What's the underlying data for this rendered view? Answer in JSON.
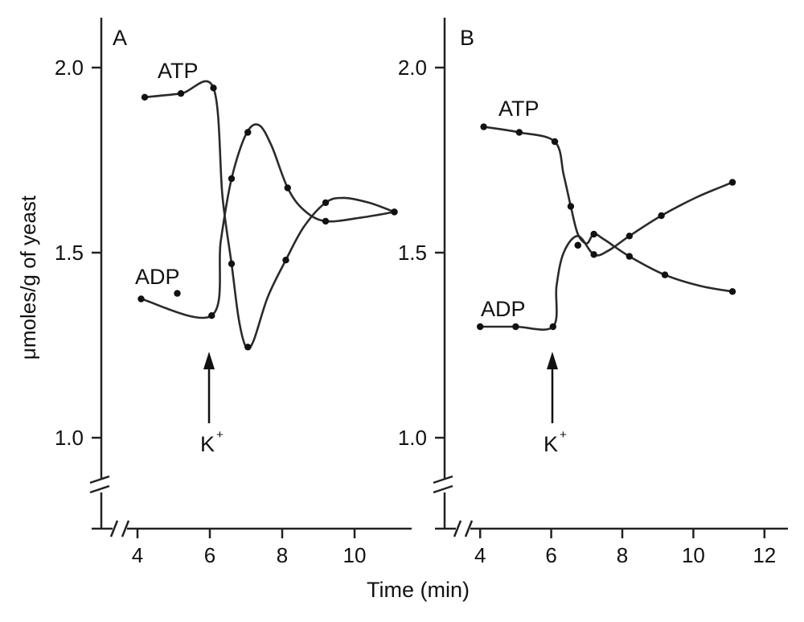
{
  "chart_data": [
    {
      "type": "line",
      "panel_label": "A",
      "ylabel": "μmoles/g of yeast",
      "xlim": [
        3,
        11.5
      ],
      "ylim": [
        0.75,
        2.15
      ],
      "yticks": [
        1.0,
        1.5,
        2.0
      ],
      "ytick_labels": [
        "1.0",
        "1.5",
        "2.0"
      ],
      "xticks": [
        4,
        6,
        8,
        10
      ],
      "xtick_labels": [
        "4",
        "6",
        "8",
        "10"
      ],
      "annotation": {
        "text": "K",
        "superscript": "+",
        "x": 6.05
      },
      "series": [
        {
          "name": "ATP",
          "points": [
            [
              4.2,
              1.92
            ],
            [
              5.2,
              1.93
            ],
            [
              6.1,
              1.945
            ],
            [
              6.6,
              1.47
            ],
            [
              7.05,
              1.245
            ],
            [
              8.1,
              1.48
            ],
            [
              9.2,
              1.635
            ],
            [
              11.1,
              1.61
            ]
          ],
          "curve": [
            [
              4.2,
              1.92
            ],
            [
              5.2,
              1.93
            ],
            [
              6.1,
              1.945
            ],
            [
              6.35,
              1.65
            ],
            [
              6.6,
              1.47
            ],
            [
              6.8,
              1.32
            ],
            [
              7.0,
              1.245
            ],
            [
              7.2,
              1.26
            ],
            [
              7.6,
              1.38
            ],
            [
              8.1,
              1.48
            ],
            [
              8.6,
              1.57
            ],
            [
              9.2,
              1.635
            ],
            [
              9.7,
              1.648
            ],
            [
              10.4,
              1.635
            ],
            [
              11.1,
              1.61
            ]
          ]
        },
        {
          "name": "ADP",
          "points": [
            [
              4.1,
              1.375
            ],
            [
              6.05,
              1.33
            ],
            [
              6.6,
              1.7
            ],
            [
              7.05,
              1.825
            ],
            [
              8.15,
              1.675
            ],
            [
              9.2,
              1.585
            ],
            [
              11.1,
              1.61
            ]
          ],
          "curve": [
            [
              4.1,
              1.375
            ],
            [
              6.05,
              1.33
            ],
            [
              6.3,
              1.53
            ],
            [
              6.6,
              1.7
            ],
            [
              7.0,
              1.82
            ],
            [
              7.35,
              1.845
            ],
            [
              7.7,
              1.79
            ],
            [
              8.15,
              1.675
            ],
            [
              8.6,
              1.615
            ],
            [
              9.2,
              1.585
            ],
            [
              10.2,
              1.595
            ],
            [
              11.1,
              1.61
            ]
          ],
          "extra_points": [
            [
              5.1,
              1.39
            ]
          ]
        }
      ]
    },
    {
      "type": "line",
      "panel_label": "B",
      "xlim": [
        3,
        12.5
      ],
      "ylim": [
        0.75,
        2.15
      ],
      "yticks": [
        1.0,
        1.5,
        2.0
      ],
      "ytick_labels": [
        "1.0",
        "1.5",
        "2.0"
      ],
      "xticks": [
        4,
        6,
        8,
        10,
        12
      ],
      "xtick_labels": [
        "4",
        "6",
        "8",
        "10",
        "12"
      ],
      "annotation": {
        "text": "K",
        "superscript": "+",
        "x": 6.05
      },
      "series": [
        {
          "name": "ATP",
          "points": [
            [
              4.1,
              1.84
            ],
            [
              5.1,
              1.825
            ],
            [
              6.1,
              1.8
            ],
            [
              6.55,
              1.625
            ],
            [
              6.75,
              1.52
            ],
            [
              7.2,
              1.55
            ],
            [
              8.2,
              1.49
            ],
            [
              9.2,
              1.44
            ],
            [
              11.1,
              1.395
            ]
          ],
          "curve": [
            [
              4.1,
              1.84
            ],
            [
              5.1,
              1.825
            ],
            [
              6.1,
              1.8
            ],
            [
              6.35,
              1.71
            ],
            [
              6.55,
              1.625
            ],
            [
              6.75,
              1.55
            ],
            [
              7.0,
              1.525
            ],
            [
              7.2,
              1.55
            ],
            [
              7.5,
              1.535
            ],
            [
              8.2,
              1.49
            ],
            [
              9.2,
              1.44
            ],
            [
              10.2,
              1.41
            ],
            [
              11.1,
              1.395
            ]
          ]
        },
        {
          "name": "ADP",
          "points": [
            [
              4.0,
              1.3
            ],
            [
              5.0,
              1.3
            ],
            [
              6.05,
              1.3
            ],
            [
              6.75,
              1.52
            ],
            [
              7.2,
              1.495
            ],
            [
              8.2,
              1.545
            ],
            [
              9.1,
              1.6
            ],
            [
              11.1,
              1.69
            ]
          ],
          "curve": [
            [
              4.0,
              1.3
            ],
            [
              5.0,
              1.3
            ],
            [
              6.05,
              1.3
            ],
            [
              6.15,
              1.41
            ],
            [
              6.35,
              1.5
            ],
            [
              6.75,
              1.545
            ],
            [
              7.2,
              1.495
            ],
            [
              7.6,
              1.505
            ],
            [
              8.2,
              1.545
            ],
            [
              9.1,
              1.6
            ],
            [
              10.1,
              1.65
            ],
            [
              11.1,
              1.69
            ]
          ]
        }
      ]
    }
  ],
  "xlabel": "Time (min)"
}
